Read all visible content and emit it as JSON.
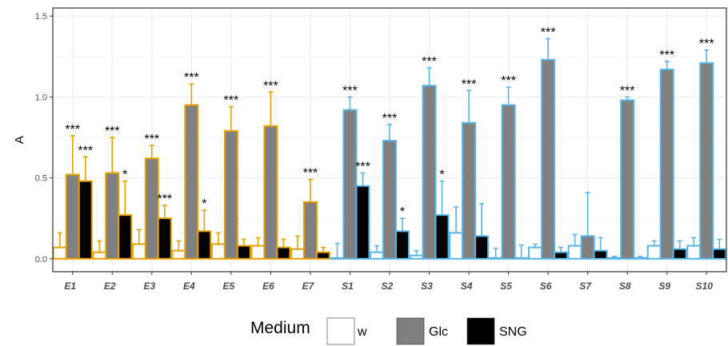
{
  "chart_data": {
    "type": "bar",
    "ylabel": "A",
    "xlabel": "",
    "ylim": [
      -0.08,
      1.55
    ],
    "yticks": [
      0.0,
      0.5,
      1.0,
      1.5
    ],
    "ytick_labels": [
      "0.0",
      "0.5",
      "1.0",
      "1.5"
    ],
    "grid": true,
    "legend_placement": "bottom",
    "legend_title": "Medium",
    "colors": {
      "E_group": "#E69F00",
      "S_group": "#56B4E9",
      "w": "#ffffff",
      "Glc": "#808080",
      "SNG": "#000000"
    },
    "categories": [
      "E1",
      "E2",
      "E3",
      "E4",
      "E5",
      "E6",
      "E7",
      "S1",
      "S2",
      "S3",
      "S4",
      "S5",
      "S6",
      "S7",
      "S8",
      "S9",
      "S10"
    ],
    "groups": [
      "E",
      "E",
      "E",
      "E",
      "E",
      "E",
      "E",
      "S",
      "S",
      "S",
      "S",
      "S",
      "S",
      "S",
      "S",
      "S",
      "S"
    ],
    "series": [
      {
        "name": "w",
        "values": [
          0.07,
          0.04,
          0.09,
          0.05,
          0.09,
          0.08,
          0.06,
          0.005,
          0.04,
          0.02,
          0.16,
          0.005,
          0.07,
          0.08,
          0.005,
          0.08,
          0.08
        ],
        "errors": [
          0.09,
          0.07,
          0.09,
          0.06,
          0.07,
          0.05,
          0.08,
          0.09,
          0.04,
          0.03,
          0.16,
          0.06,
          0.02,
          0.07,
          0.01,
          0.03,
          0.05
        ],
        "sig": [
          "",
          "",
          "",
          "",
          "",
          "",
          "",
          "",
          "",
          "",
          "",
          "",
          "",
          "",
          "",
          "",
          ""
        ]
      },
      {
        "name": "Glc",
        "values": [
          0.52,
          0.53,
          0.62,
          0.95,
          0.79,
          0.82,
          0.35,
          0.92,
          0.73,
          1.07,
          0.84,
          0.95,
          1.23,
          0.14,
          0.98,
          1.17,
          1.21
        ],
        "errors": [
          0.24,
          0.22,
          0.08,
          0.13,
          0.15,
          0.21,
          0.14,
          0.08,
          0.1,
          0.11,
          0.2,
          0.11,
          0.13,
          0.27,
          0.02,
          0.05,
          0.08
        ],
        "sig": [
          "***",
          "***",
          "***",
          "***",
          "***",
          "***",
          "***",
          "***",
          "***",
          "***",
          "***",
          "***",
          "***",
          "",
          "***",
          "***",
          "***"
        ]
      },
      {
        "name": "SNG",
        "values": [
          0.48,
          0.27,
          0.25,
          0.17,
          0.08,
          0.07,
          0.04,
          0.45,
          0.17,
          0.27,
          0.14,
          0.005,
          0.04,
          0.05,
          0.005,
          0.06,
          0.06
        ],
        "errors": [
          0.15,
          0.21,
          0.08,
          0.13,
          0.04,
          0.05,
          0.03,
          0.08,
          0.08,
          0.21,
          0.2,
          0.08,
          0.03,
          0.08,
          0.01,
          0.05,
          0.06
        ],
        "sig": [
          "***",
          "*",
          "***",
          "*",
          "",
          "",
          "",
          "***",
          "*",
          "*",
          "",
          "",
          "",
          "",
          "",
          "",
          ""
        ]
      }
    ]
  }
}
